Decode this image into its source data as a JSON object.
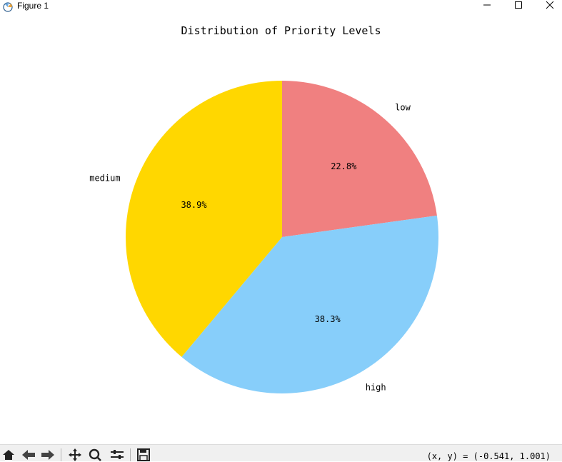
{
  "window": {
    "title": "Figure 1"
  },
  "chart_data": {
    "type": "pie",
    "title": "Distribution of Priority Levels",
    "labels": [
      "low",
      "high",
      "medium"
    ],
    "values": [
      22.8,
      38.3,
      38.9
    ],
    "autopct_labels": [
      "22.8%",
      "38.3%",
      "38.9%"
    ],
    "colors": [
      "#f08080",
      "#87cefa",
      "#ffd700"
    ],
    "startangle": 90,
    "direction": "clockwise"
  },
  "toolbar": {
    "icons": [
      "home-icon",
      "back-icon",
      "forward-icon",
      "pan-icon",
      "zoom-icon",
      "configure-subplots-icon",
      "save-icon"
    ],
    "coordinates": "(x, y) = (-0.541, 1.001)"
  }
}
